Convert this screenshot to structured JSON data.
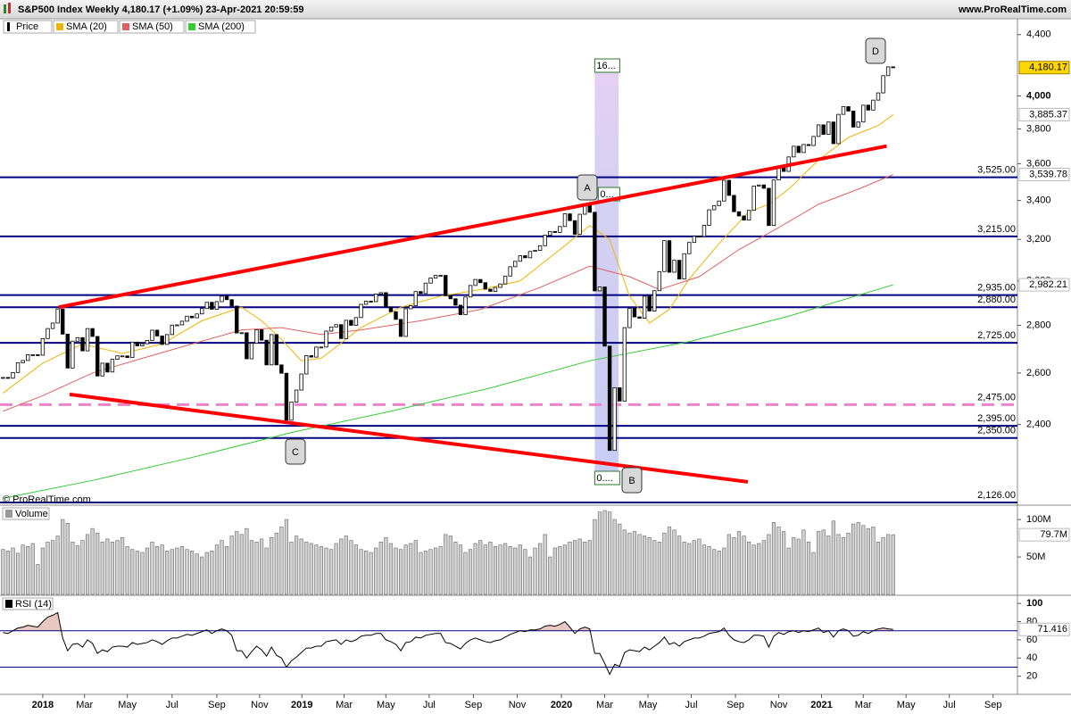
{
  "header": {
    "title": "S&P500 Index Weekly 4,180.17 (+1.09%) 23-Apr-2021 20:59:59",
    "site": "www.ProRealTime.com"
  },
  "chart_data": [
    {
      "type": "candlestick",
      "name": "Price",
      "color": "#000000",
      "color_up": "#ffffff",
      "color_down": "#000000",
      "log_scale": true,
      "ylim": [
        2120,
        4510
      ],
      "yticks": [
        {
          "value": 2400,
          "label": "2,400"
        },
        {
          "value": 2600,
          "label": "2,600"
        },
        {
          "value": 2800,
          "label": "2,800"
        },
        {
          "value": 3000,
          "label": "3,000"
        },
        {
          "value": 3200,
          "label": "3,200"
        },
        {
          "value": 3400,
          "label": "3,400"
        },
        {
          "value": 3600,
          "label": "3,600"
        },
        {
          "value": 3800,
          "label": "3,800"
        },
        {
          "value": 4000,
          "label": "4,000"
        },
        {
          "value": 4400,
          "label": "4,400"
        }
      ],
      "xlim": [
        -0.6,
        204
      ],
      "xticks": [
        {
          "value": 8,
          "label": "2018"
        },
        {
          "value": 16.4,
          "label": "Mar"
        },
        {
          "value": 25,
          "label": "May"
        },
        {
          "value": 34,
          "label": "Jul"
        },
        {
          "value": 43,
          "label": "Sep"
        },
        {
          "value": 51.6,
          "label": "Nov"
        },
        {
          "value": 60.1,
          "label": "2019"
        },
        {
          "value": 68.6,
          "label": "Mar"
        },
        {
          "value": 77,
          "label": "May"
        },
        {
          "value": 85.7,
          "label": "Jul"
        },
        {
          "value": 94.6,
          "label": "Sep"
        },
        {
          "value": 103.4,
          "label": "Nov"
        },
        {
          "value": 112.3,
          "label": "2020"
        },
        {
          "value": 121,
          "label": "Mar"
        },
        {
          "value": 129.7,
          "label": "May"
        },
        {
          "value": 138.4,
          "label": "Jul"
        },
        {
          "value": 147.3,
          "label": "Sep"
        },
        {
          "value": 156,
          "label": "Nov"
        },
        {
          "value": 164.6,
          "label": "2021"
        },
        {
          "value": 173,
          "label": "Mar"
        },
        {
          "value": 181.6,
          "label": "May"
        },
        {
          "value": 190.3,
          "label": "Jul"
        },
        {
          "value": 199.1,
          "label": "Sep"
        }
      ],
      "values": [
        2582,
        2579,
        2602,
        2642,
        2651,
        2675,
        2675,
        2673,
        2743,
        2786,
        2810,
        2872,
        2762,
        2620,
        2732,
        2747,
        2691,
        2786,
        2752,
        2588,
        2640,
        2604,
        2656,
        2670,
        2670,
        2663,
        2728,
        2712,
        2721,
        2735,
        2779,
        2754,
        2718,
        2760,
        2801,
        2802,
        2818,
        2840,
        2833,
        2850,
        2874,
        2902,
        2871,
        2905,
        2930,
        2914,
        2885,
        2767,
        2768,
        2658,
        2723,
        2781,
        2736,
        2633,
        2760,
        2633,
        2599,
        2416,
        2485,
        2532,
        2596,
        2671,
        2665,
        2707,
        2707,
        2775,
        2793,
        2803,
        2743,
        2822,
        2800,
        2834,
        2893,
        2907,
        2905,
        2940,
        2946,
        2881,
        2860,
        2826,
        2752,
        2873,
        2887,
        2951,
        2942,
        2990,
        3014,
        3026,
        3026,
        2932,
        2918,
        2889,
        2847,
        2926,
        2979,
        3007,
        2992,
        2962,
        2952,
        2970,
        2986,
        3023,
        3067,
        3093,
        3120,
        3110,
        3141,
        3146,
        3169,
        3221,
        3240,
        3235,
        3265,
        3330,
        3295,
        3226,
        3328,
        3380,
        3338,
        2954,
        2972,
        2711,
        2305,
        2541,
        2489,
        2790,
        2875,
        2837,
        2831,
        2930,
        2863,
        2955,
        3044,
        3194,
        3041,
        3098,
        3009,
        3130,
        3185,
        3216,
        3215,
        3271,
        3351,
        3373,
        3397,
        3508,
        3427,
        3341,
        3319,
        3298,
        3348,
        3477,
        3483,
        3465,
        3270,
        3510,
        3585,
        3557,
        3638,
        3699,
        3663,
        3709,
        3703,
        3756,
        3824,
        3768,
        3841,
        3714,
        3887,
        3934,
        3907,
        3811,
        3841,
        3943,
        3913,
        3974,
        4019,
        4128,
        4185,
        4180.17
      ],
      "last_label": "4,180.17",
      "series": [
        {
          "name": "SMA (20)",
          "color": "#f0b400",
          "last_label": "3,885.37",
          "x": [
            0,
            8,
            16,
            24,
            32,
            40,
            48,
            52,
            56,
            60,
            64,
            72,
            80,
            88,
            96,
            104,
            112,
            118,
            122,
            126,
            130,
            134,
            138,
            144,
            150,
            154,
            158,
            164,
            170,
            176,
            179
          ],
          "values": [
            2520,
            2640,
            2720,
            2680,
            2720,
            2820,
            2880,
            2820,
            2740,
            2650,
            2660,
            2790,
            2880,
            2930,
            2960,
            3000,
            3150,
            3270,
            3200,
            2930,
            2810,
            2870,
            3010,
            3180,
            3340,
            3380,
            3460,
            3620,
            3750,
            3820,
            3885.37
          ]
        },
        {
          "name": "SMA (50)",
          "color": "#e06060",
          "last_label": "3,539.78",
          "x": [
            0,
            8,
            18,
            28,
            38,
            48,
            56,
            64,
            72,
            84,
            96,
            108,
            118,
            126,
            132,
            140,
            148,
            156,
            164,
            172,
            179
          ],
          "values": [
            2450,
            2510,
            2600,
            2660,
            2720,
            2780,
            2790,
            2760,
            2780,
            2820,
            2870,
            2970,
            3070,
            3020,
            2960,
            3020,
            3150,
            3260,
            3380,
            3460,
            3539.78
          ]
        },
        {
          "name": "SMA (200)",
          "color": "#33cc33",
          "last_label": "2,982.21",
          "x": [
            0,
            18,
            38,
            58,
            78,
            98,
            118,
            138,
            158,
            179
          ],
          "values": [
            2140,
            2200,
            2280,
            2370,
            2450,
            2540,
            2650,
            2730,
            2840,
            2982.21
          ]
        }
      ],
      "levels": [
        {
          "value": 3525,
          "label": "3,525.00",
          "color": "#000080"
        },
        {
          "value": 3215,
          "label": "3,215.00",
          "color": "#000080"
        },
        {
          "value": 2935,
          "label": "2,935.00",
          "color": "#000080"
        },
        {
          "value": 2880,
          "label": "2,880.00",
          "color": "#000080"
        },
        {
          "value": 2725,
          "label": "2,725.00",
          "color": "#000080"
        },
        {
          "value": 2475,
          "label": "2,475.00",
          "color": "#ee82c8",
          "dashed": true
        },
        {
          "value": 2395,
          "label": "2,395.00",
          "color": "#000080"
        },
        {
          "value": 2350,
          "label": "2,350.00",
          "color": "#000080"
        },
        {
          "value": 2126,
          "label": "2,126.00",
          "color": "#000080"
        }
      ],
      "trendlines": [
        {
          "x": [
            11.2,
            177.7
          ],
          "y": [
            2880,
            3700
          ],
          "color": "#ff0000"
        },
        {
          "x": [
            13.4,
            149.8
          ],
          "y": [
            2515,
            2195
          ],
          "color": "#ff0000"
        }
      ],
      "highlight": {
        "x": [
          119,
          123.8
        ],
        "labels": [
          "16...",
          "0...",
          "0...."
        ]
      },
      "annotations": [
        "A",
        "B",
        "C",
        "D"
      ],
      "watermark": "© ProRealTime.com"
    },
    {
      "type": "bar",
      "title": "Volume",
      "color": "#d0d0d0",
      "ylim": [
        0,
        118
      ],
      "yticks": [
        {
          "value": 50,
          "label": "50M"
        },
        {
          "value": 100,
          "label": "100M"
        }
      ],
      "values": [
        60,
        58,
        62,
        55,
        66,
        64,
        68,
        40,
        62,
        70,
        72,
        78,
        100,
        95,
        70,
        65,
        72,
        80,
        88,
        82,
        70,
        74,
        70,
        72,
        76,
        64,
        60,
        58,
        56,
        62,
        70,
        64,
        66,
        58,
        60,
        62,
        64,
        60,
        58,
        54,
        50,
        56,
        58,
        66,
        72,
        64,
        78,
        84,
        80,
        88,
        72,
        70,
        74,
        62,
        76,
        82,
        90,
        100,
        70,
        78,
        74,
        70,
        68,
        66,
        64,
        62,
        60,
        68,
        74,
        78,
        72,
        66,
        60,
        58,
        56,
        62,
        70,
        76,
        68,
        62,
        60,
        66,
        68,
        72,
        56,
        58,
        60,
        62,
        64,
        80,
        78,
        70,
        66,
        56,
        60,
        68,
        72,
        66,
        70,
        64,
        66,
        68,
        64,
        62,
        66,
        60,
        50,
        62,
        68,
        80,
        50,
        62,
        64,
        66,
        70,
        72,
        74,
        70,
        72,
        100,
        110,
        112,
        110,
        100,
        94,
        86,
        82,
        84,
        80,
        78,
        76,
        72,
        70,
        82,
        90,
        86,
        78,
        70,
        68,
        72,
        74,
        66,
        64,
        60,
        58,
        62,
        80,
        76,
        84,
        78,
        70,
        66,
        68,
        72,
        80,
        96,
        90,
        84,
        62,
        76,
        74,
        86,
        70,
        56,
        84,
        86,
        78,
        98,
        80,
        76,
        82,
        94,
        96,
        92,
        88,
        90,
        70,
        76,
        80,
        79.7
      ],
      "last_label": "79.7M"
    },
    {
      "type": "line",
      "title": "RSI (14)",
      "color": "#000000",
      "ylim": [
        1,
        108
      ],
      "yticks": [
        20,
        40,
        60,
        80,
        100
      ],
      "levels": [
        30,
        70
      ],
      "values": [
        68,
        67,
        70,
        73,
        74,
        76,
        75,
        74,
        80,
        85,
        87,
        90,
        62,
        48,
        55,
        56,
        52,
        60,
        56,
        45,
        49,
        47,
        52,
        53,
        53,
        52,
        57,
        55,
        56,
        57,
        60,
        58,
        55,
        59,
        62,
        62,
        64,
        66,
        65,
        67,
        69,
        71,
        67,
        70,
        72,
        70,
        65,
        48,
        48,
        40,
        47,
        53,
        49,
        42,
        52,
        43,
        40,
        30,
        37,
        41,
        46,
        51,
        51,
        53,
        53,
        58,
        59,
        60,
        55,
        60,
        58,
        60,
        64,
        65,
        65,
        67,
        67,
        60,
        58,
        55,
        48,
        57,
        58,
        63,
        62,
        65,
        66,
        67,
        67,
        57,
        56,
        53,
        50,
        56,
        60,
        62,
        60,
        58,
        57,
        59,
        60,
        63,
        66,
        68,
        70,
        69,
        71,
        71,
        72,
        75,
        76,
        75,
        77,
        80,
        74,
        67,
        72,
        74,
        72,
        45,
        45,
        34,
        22,
        33,
        31,
        46,
        49,
        48,
        47,
        52,
        49,
        53,
        57,
        63,
        55,
        57,
        53,
        58,
        60,
        62,
        62,
        64,
        67,
        68,
        69,
        73,
        65,
        60,
        58,
        57,
        60,
        65,
        65,
        64,
        52,
        64,
        68,
        66,
        69,
        70,
        68,
        70,
        69,
        71,
        73,
        68,
        70,
        63,
        70,
        72,
        70,
        64,
        65,
        69,
        67,
        70,
        72,
        73,
        72,
        71.416
      ],
      "last_label": "71.416"
    }
  ]
}
